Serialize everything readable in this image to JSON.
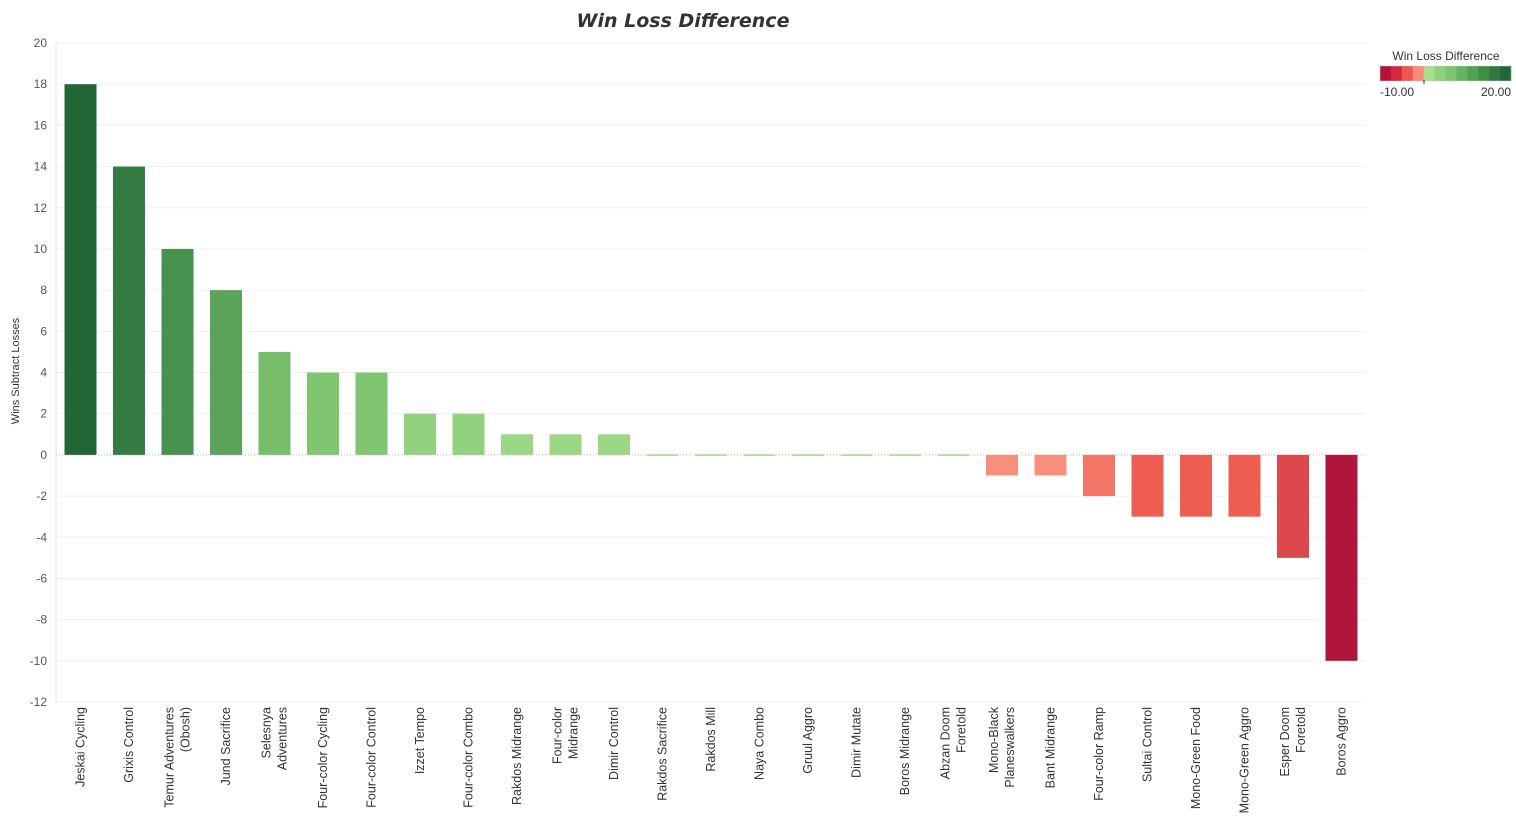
{
  "chart_data": {
    "type": "bar",
    "title": "Win Loss Difference",
    "xlabel": "",
    "ylabel": "Wins Subtract Losses",
    "ylim": [
      -12,
      20
    ],
    "yticks": [
      20,
      18,
      16,
      14,
      12,
      10,
      8,
      6,
      4,
      2,
      0,
      -2,
      -4,
      -6,
      -8,
      -10,
      -12
    ],
    "grid": true,
    "categories": [
      "Jeskai Cycling",
      "Grixis Control",
      "Temur Adventures (Obosh)",
      "Jund Sacrifice",
      "Selesnya Adventures",
      "Four-color Cycling",
      "Four-color Control",
      "Izzet Tempo",
      "Four-color Combo",
      "Rakdos Midrange",
      "Four-color Midrange",
      "Dimir Control",
      "Rakdos Sacrifice",
      "Rakdos Mill",
      "Naya Combo",
      "Gruul Aggro",
      "Dimir Mutate",
      "Boros Midrange",
      "Abzan Doom Foretold",
      "Mono-Black Planeswalkers",
      "Bant Midrange",
      "Four-color Ramp",
      "Sultai Control",
      "Mono-Green Food",
      "Mono-Green Aggro",
      "Esper Doom Foretold",
      "Boros Aggro"
    ],
    "category_lines": [
      [
        "Jeskai Cycling"
      ],
      [
        "Grixis Control"
      ],
      [
        "Temur Adventures",
        "(Obosh)"
      ],
      [
        "Jund Sacrifice"
      ],
      [
        "Selesnya",
        "Adventures"
      ],
      [
        "Four-color Cycling"
      ],
      [
        "Four-color Control"
      ],
      [
        "Izzet Tempo"
      ],
      [
        "Four-color Combo"
      ],
      [
        "Rakdos Midrange"
      ],
      [
        "Four-color",
        "Midrange"
      ],
      [
        "Dimir Control"
      ],
      [
        "Rakdos Sacrifice"
      ],
      [
        "Rakdos Mill"
      ],
      [
        "Naya Combo"
      ],
      [
        "Gruul Aggro"
      ],
      [
        "Dimir Mutate"
      ],
      [
        "Boros Midrange"
      ],
      [
        "Abzan Doom",
        "Foretold"
      ],
      [
        "Mono-Black",
        "Planeswalkers"
      ],
      [
        "Bant Midrange"
      ],
      [
        "Four-color Ramp"
      ],
      [
        "Sultai Control"
      ],
      [
        "Mono-Green Food"
      ],
      [
        "Mono-Green Aggro"
      ],
      [
        "Esper Doom",
        "Foretold"
      ],
      [
        "Boros Aggro"
      ]
    ],
    "values": [
      18,
      14,
      10,
      8,
      5,
      4,
      4,
      2,
      2,
      1,
      1,
      1,
      0,
      0,
      0,
      0,
      0,
      0,
      0,
      -1,
      -1,
      -2,
      -3,
      -3,
      -3,
      -5,
      -10
    ],
    "legend": {
      "title": "Win Loss Difference",
      "min_label": "-10.00",
      "max_label": "20.00",
      "placement": "top-right",
      "steps": [
        "#b3143c",
        "#d7263f",
        "#f0564d",
        "#f9897a",
        "#a8de8e",
        "#8fd27b",
        "#7cc56d",
        "#66b35d",
        "#52a152",
        "#418e48",
        "#31793f",
        "#236638"
      ]
    }
  }
}
